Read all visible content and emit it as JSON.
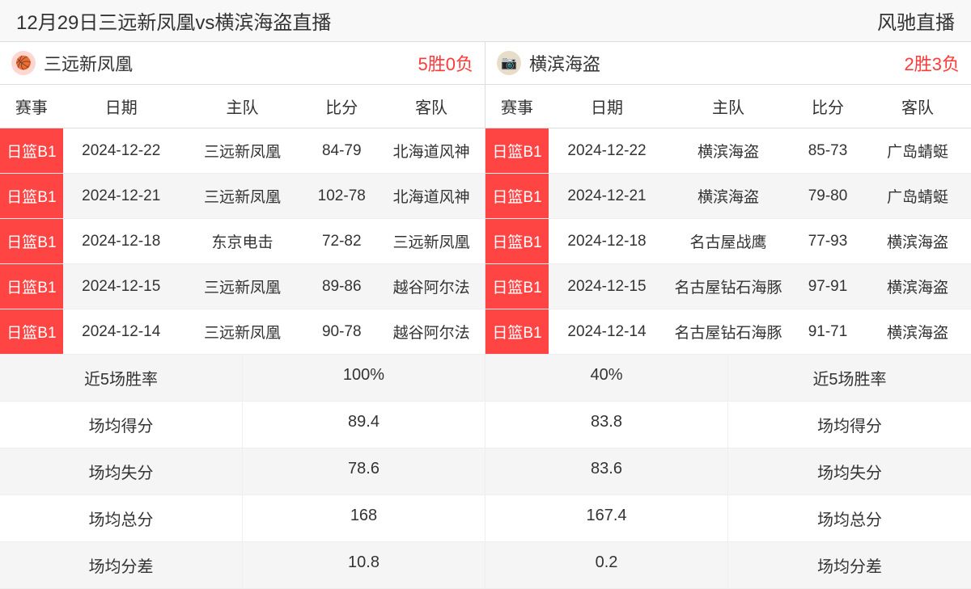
{
  "header": {
    "title": "12月29日三远新凤凰vs横滨海盗直播",
    "brand": "风驰直播"
  },
  "teams": {
    "left": {
      "name": "三远新凤凰",
      "record": "5胜0负",
      "logo_bg": "#ffd6d0"
    },
    "right": {
      "name": "横滨海盗",
      "record": "2胜3负",
      "logo_bg": "#e8ddc9"
    }
  },
  "columns": {
    "league": "赛事",
    "date": "日期",
    "home": "主队",
    "score": "比分",
    "away": "客队"
  },
  "league_label": "日篮B1",
  "games": {
    "left": [
      {
        "date": "2024-12-22",
        "home": "三远新凤凰",
        "score": "84-79",
        "away": "北海道风神"
      },
      {
        "date": "2024-12-21",
        "home": "三远新凤凰",
        "score": "102-78",
        "away": "北海道风神"
      },
      {
        "date": "2024-12-18",
        "home": "东京电击",
        "score": "72-82",
        "away": "三远新凤凰"
      },
      {
        "date": "2024-12-15",
        "home": "三远新凤凰",
        "score": "89-86",
        "away": "越谷阿尔法"
      },
      {
        "date": "2024-12-14",
        "home": "三远新凤凰",
        "score": "90-78",
        "away": "越谷阿尔法"
      }
    ],
    "right": [
      {
        "date": "2024-12-22",
        "home": "横滨海盗",
        "score": "85-73",
        "away": "广岛蜻蜓"
      },
      {
        "date": "2024-12-21",
        "home": "横滨海盗",
        "score": "79-80",
        "away": "广岛蜻蜓"
      },
      {
        "date": "2024-12-18",
        "home": "名古屋战鹰",
        "score": "77-93",
        "away": "横滨海盗"
      },
      {
        "date": "2024-12-15",
        "home": "名古屋钻石海豚",
        "score": "97-91",
        "away": "横滨海盗"
      },
      {
        "date": "2024-12-14",
        "home": "名古屋钻石海豚",
        "score": "91-71",
        "away": "横滨海盗"
      }
    ]
  },
  "stats": {
    "labels": {
      "win_rate": "近5场胜率",
      "avg_pts": "场均得分",
      "avg_concede": "场均失分",
      "avg_total": "场均总分",
      "avg_diff": "场均分差"
    },
    "left": {
      "win_rate": "100%",
      "avg_pts": "89.4",
      "avg_concede": "78.6",
      "avg_total": "168",
      "avg_diff": "10.8"
    },
    "right": {
      "win_rate": "40%",
      "avg_pts": "83.8",
      "avg_concede": "83.6",
      "avg_total": "167.4",
      "avg_diff": "0.2"
    }
  },
  "colors": {
    "badge_bg": "#ff4444",
    "badge_fg": "#ffffff",
    "record_color": "#ff3a3a",
    "alt_row_bg": "#f5f5f5",
    "border": "#dddddd"
  }
}
